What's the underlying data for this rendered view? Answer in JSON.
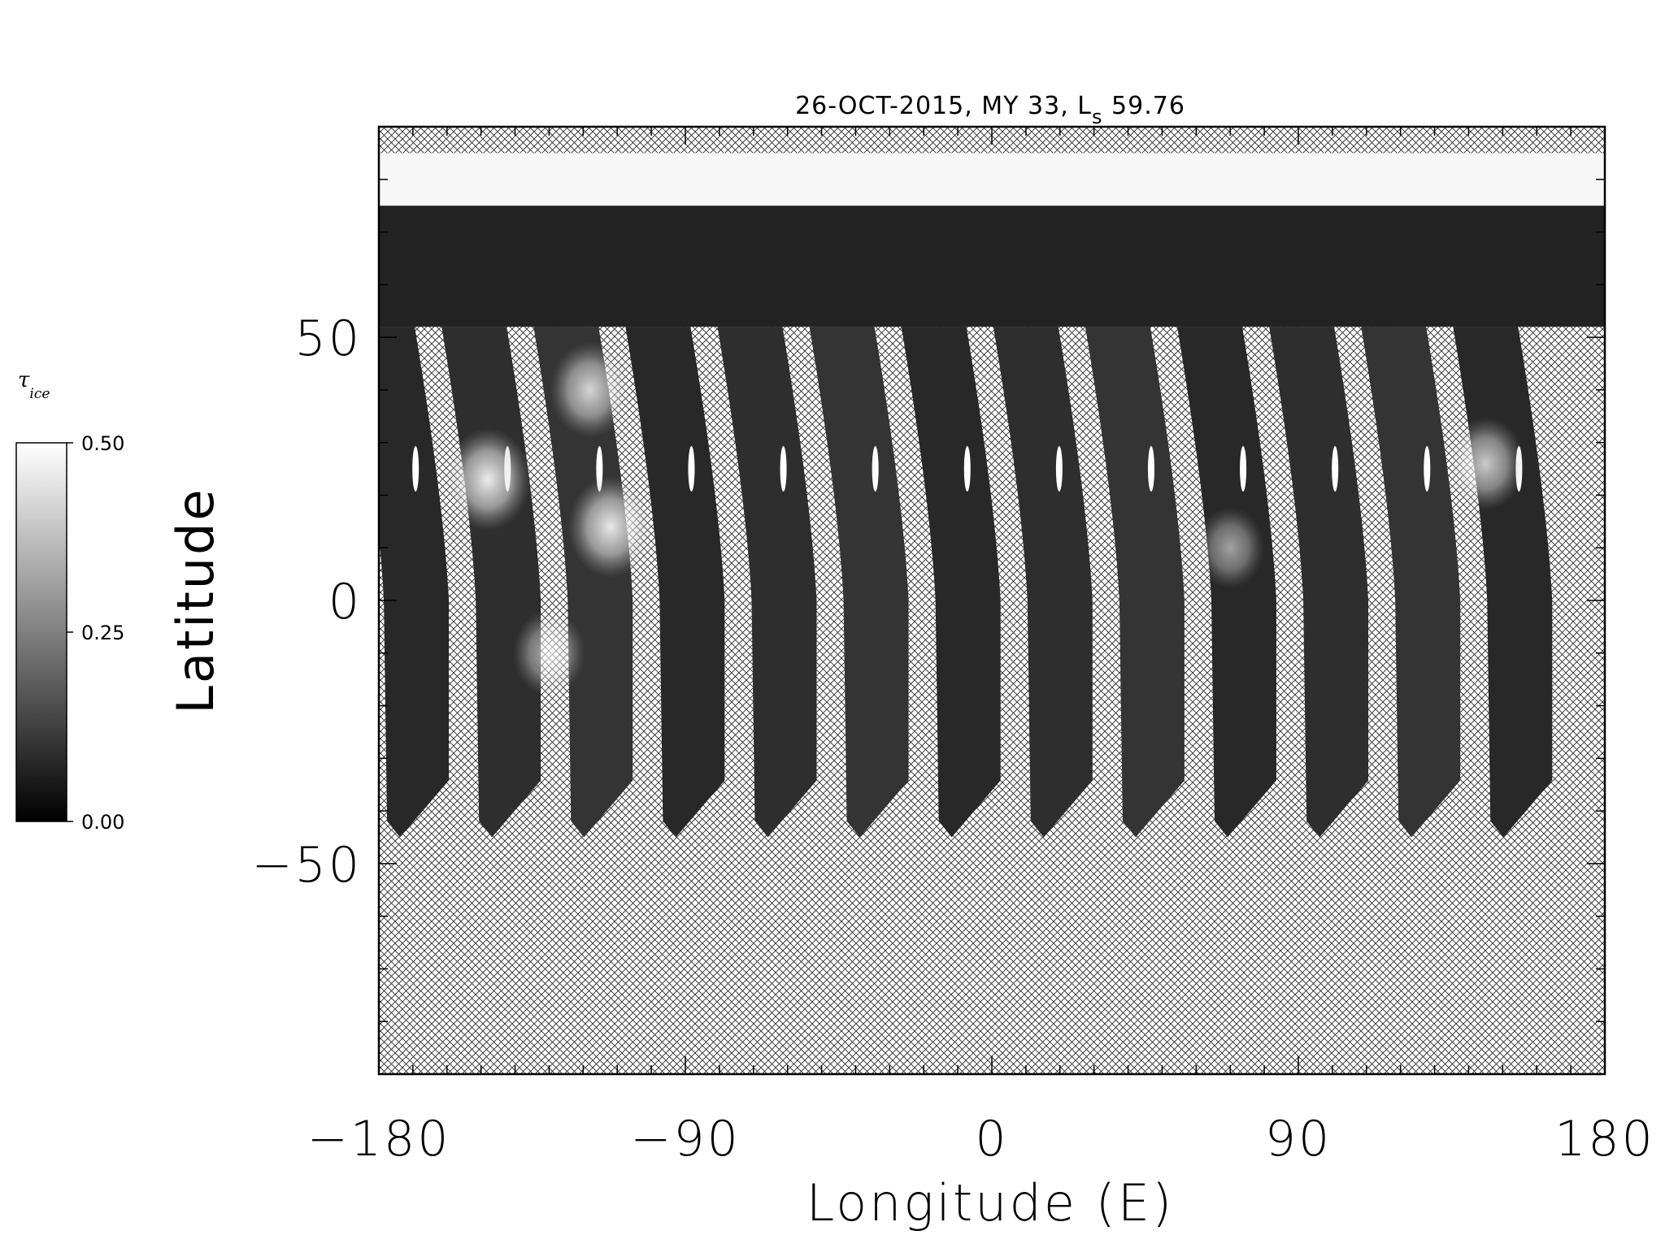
{
  "chart_data": {
    "type": "heatmap",
    "title_main": "26-OCT-2015, MY 33,  L",
    "title_sub": "s",
    "title_value": " 59.76",
    "xlabel": "Longitude (E)",
    "ylabel": "Latitude",
    "xlim": [
      -180,
      180
    ],
    "ylim": [
      -90,
      90
    ],
    "x_ticks": [
      "−180",
      "−90",
      "0",
      "90",
      "180"
    ],
    "x_tick_values": [
      -180,
      -90,
      0,
      90,
      180
    ],
    "y_ticks": [
      "−50",
      "0",
      "50"
    ],
    "y_tick_values": [
      -50,
      0,
      50
    ],
    "colorbar": {
      "label": "τ",
      "label_sub": "ice",
      "ticks": [
        "0.50",
        "0.25",
        "0.00"
      ],
      "tick_values": [
        0.5,
        0.25,
        0.0
      ],
      "min": 0.0,
      "max": 0.5,
      "colormap": "grayscale"
    },
    "no_data_fill": "crosshatch",
    "polar_cap_lat_range": [
      75,
      85
    ],
    "swath_count": 13,
    "swath_center_longitudes": [
      -169,
      -142,
      -115,
      -88,
      -61,
      -34,
      -7,
      20,
      47,
      74,
      101,
      128,
      155
    ],
    "swath_south_edge_latitude": -45,
    "bright_cloud_features": [
      {
        "lon": -148,
        "lat": 23,
        "tau": 0.48
      },
      {
        "lon": -118,
        "lat": 40,
        "tau": 0.42
      },
      {
        "lon": -112,
        "lat": 14,
        "tau": 0.47
      },
      {
        "lon": -130,
        "lat": -10,
        "tau": 0.34
      },
      {
        "lon": 145,
        "lat": 26,
        "tau": 0.4
      },
      {
        "lon": 70,
        "lat": 10,
        "tau": 0.3
      }
    ]
  }
}
